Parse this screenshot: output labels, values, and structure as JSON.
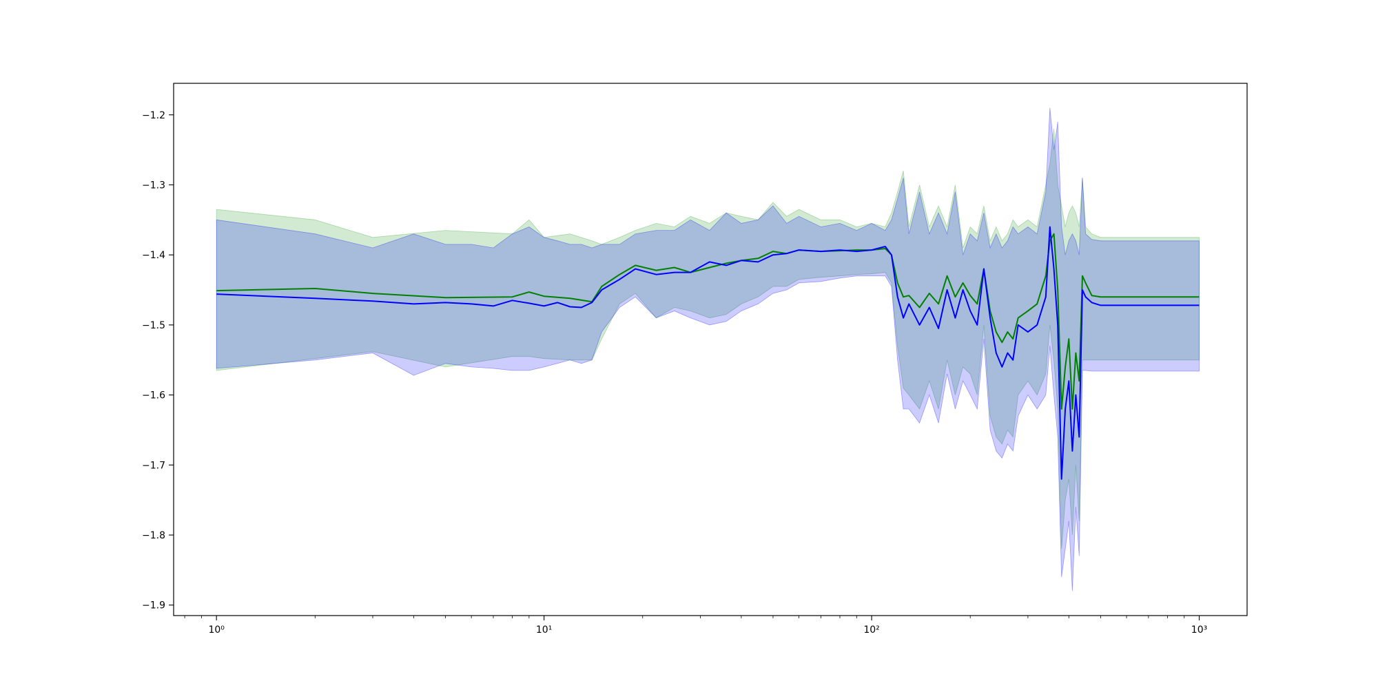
{
  "chart_data": {
    "type": "line",
    "title": "",
    "xlabel": "",
    "ylabel": "",
    "xscale": "log",
    "xlim": [
      0.74,
      1400
    ],
    "ylim": [
      -1.915,
      -1.155
    ],
    "grid": false,
    "legend": "none",
    "x_ticks": [
      {
        "value": 1,
        "label": "10⁰"
      },
      {
        "value": 10,
        "label": "10¹"
      },
      {
        "value": 100,
        "label": "10²"
      },
      {
        "value": 1000,
        "label": "10³"
      }
    ],
    "y_ticks": [
      {
        "value": -1.2,
        "label": "−1.2"
      },
      {
        "value": -1.3,
        "label": "−1.3"
      },
      {
        "value": -1.4,
        "label": "−1.4"
      },
      {
        "value": -1.5,
        "label": "−1.5"
      },
      {
        "value": -1.6,
        "label": "−1.6"
      },
      {
        "value": -1.7,
        "label": "−1.7"
      },
      {
        "value": -1.8,
        "label": "−1.8"
      },
      {
        "value": -1.9,
        "label": "−1.9"
      }
    ],
    "series": [
      {
        "color": "#008000",
        "band_color": "#2ca02c",
        "band_opacity": 0.22,
        "x": [
          1,
          2,
          3,
          5,
          8,
          9,
          10,
          12,
          14,
          15,
          17,
          19,
          22,
          25,
          28,
          32,
          36,
          40,
          45,
          50,
          55,
          60,
          70,
          80,
          90,
          100,
          110,
          115,
          120,
          125,
          130,
          140,
          150,
          160,
          170,
          180,
          190,
          200,
          210,
          220,
          230,
          240,
          250,
          260,
          270,
          280,
          300,
          320,
          340,
          350,
          360,
          370,
          380,
          390,
          400,
          410,
          420,
          430,
          440,
          450,
          470,
          500,
          1000
        ],
        "mean": [
          -1.451,
          -1.448,
          -1.455,
          -1.461,
          -1.46,
          -1.453,
          -1.459,
          -1.462,
          -1.467,
          -1.445,
          -1.428,
          -1.415,
          -1.422,
          -1.418,
          -1.425,
          -1.418,
          -1.412,
          -1.408,
          -1.405,
          -1.395,
          -1.398,
          -1.393,
          -1.395,
          -1.394,
          -1.393,
          -1.393,
          -1.391,
          -1.4,
          -1.44,
          -1.46,
          -1.458,
          -1.475,
          -1.455,
          -1.47,
          -1.43,
          -1.46,
          -1.44,
          -1.458,
          -1.47,
          -1.42,
          -1.48,
          -1.51,
          -1.525,
          -1.51,
          -1.52,
          -1.49,
          -1.48,
          -1.47,
          -1.43,
          -1.38,
          -1.37,
          -1.45,
          -1.62,
          -1.56,
          -1.52,
          -1.62,
          -1.54,
          -1.58,
          -1.43,
          -1.44,
          -1.458,
          -1.46,
          -1.46
        ],
        "upper": [
          -1.335,
          -1.35,
          -1.375,
          -1.365,
          -1.37,
          -1.35,
          -1.375,
          -1.37,
          -1.38,
          -1.385,
          -1.375,
          -1.365,
          -1.355,
          -1.36,
          -1.345,
          -1.355,
          -1.34,
          -1.345,
          -1.35,
          -1.325,
          -1.345,
          -1.335,
          -1.35,
          -1.35,
          -1.36,
          -1.355,
          -1.36,
          -1.34,
          -1.31,
          -1.28,
          -1.36,
          -1.3,
          -1.36,
          -1.33,
          -1.36,
          -1.3,
          -1.39,
          -1.36,
          -1.37,
          -1.33,
          -1.38,
          -1.36,
          -1.38,
          -1.37,
          -1.35,
          -1.36,
          -1.35,
          -1.36,
          -1.3,
          -1.27,
          -1.22,
          -1.3,
          -1.33,
          -1.36,
          -1.34,
          -1.33,
          -1.34,
          -1.36,
          -1.29,
          -1.36,
          -1.37,
          -1.375,
          -1.375
        ],
        "lower": [
          -1.565,
          -1.548,
          -1.538,
          -1.56,
          -1.545,
          -1.545,
          -1.548,
          -1.55,
          -1.55,
          -1.52,
          -1.47,
          -1.455,
          -1.49,
          -1.475,
          -1.48,
          -1.49,
          -1.485,
          -1.47,
          -1.46,
          -1.445,
          -1.445,
          -1.435,
          -1.432,
          -1.43,
          -1.428,
          -1.427,
          -1.425,
          -1.44,
          -1.53,
          -1.59,
          -1.6,
          -1.62,
          -1.58,
          -1.62,
          -1.55,
          -1.6,
          -1.56,
          -1.57,
          -1.6,
          -1.5,
          -1.63,
          -1.66,
          -1.67,
          -1.65,
          -1.66,
          -1.6,
          -1.58,
          -1.6,
          -1.57,
          -1.5,
          -1.55,
          -1.62,
          -1.82,
          -1.75,
          -1.72,
          -1.8,
          -1.7,
          -1.78,
          -1.55,
          -1.55,
          -1.55,
          -1.55,
          -1.55
        ]
      },
      {
        "color": "#0000ff",
        "band_color": "#0000ff",
        "band_opacity": 0.2,
        "x": [
          1,
          2,
          3,
          4,
          5,
          6,
          7,
          8,
          9,
          10,
          11,
          12,
          13,
          14,
          15,
          17,
          19,
          22,
          25,
          28,
          32,
          36,
          40,
          45,
          50,
          55,
          60,
          70,
          80,
          90,
          100,
          110,
          115,
          120,
          125,
          130,
          140,
          150,
          160,
          170,
          180,
          190,
          200,
          210,
          220,
          230,
          240,
          250,
          260,
          270,
          280,
          300,
          320,
          340,
          350,
          360,
          370,
          380,
          390,
          400,
          410,
          420,
          430,
          440,
          450,
          470,
          500,
          1000
        ],
        "mean": [
          -1.456,
          -1.462,
          -1.466,
          -1.47,
          -1.468,
          -1.47,
          -1.473,
          -1.465,
          -1.469,
          -1.473,
          -1.468,
          -1.474,
          -1.475,
          -1.468,
          -1.45,
          -1.435,
          -1.42,
          -1.428,
          -1.425,
          -1.425,
          -1.41,
          -1.415,
          -1.408,
          -1.41,
          -1.4,
          -1.398,
          -1.393,
          -1.395,
          -1.393,
          -1.395,
          -1.393,
          -1.388,
          -1.4,
          -1.46,
          -1.49,
          -1.47,
          -1.5,
          -1.475,
          -1.505,
          -1.45,
          -1.49,
          -1.45,
          -1.48,
          -1.5,
          -1.42,
          -1.49,
          -1.54,
          -1.56,
          -1.54,
          -1.55,
          -1.5,
          -1.51,
          -1.5,
          -1.46,
          -1.36,
          -1.42,
          -1.5,
          -1.72,
          -1.62,
          -1.58,
          -1.68,
          -1.6,
          -1.66,
          -1.45,
          -1.46,
          -1.468,
          -1.472,
          -1.472
        ],
        "upper": [
          -1.35,
          -1.37,
          -1.39,
          -1.37,
          -1.385,
          -1.385,
          -1.39,
          -1.37,
          -1.36,
          -1.375,
          -1.38,
          -1.385,
          -1.385,
          -1.39,
          -1.385,
          -1.385,
          -1.37,
          -1.365,
          -1.365,
          -1.35,
          -1.365,
          -1.34,
          -1.355,
          -1.35,
          -1.33,
          -1.355,
          -1.345,
          -1.36,
          -1.355,
          -1.365,
          -1.355,
          -1.365,
          -1.35,
          -1.32,
          -1.29,
          -1.37,
          -1.31,
          -1.37,
          -1.34,
          -1.37,
          -1.31,
          -1.4,
          -1.37,
          -1.38,
          -1.34,
          -1.39,
          -1.37,
          -1.39,
          -1.38,
          -1.36,
          -1.37,
          -1.36,
          -1.37,
          -1.31,
          -1.19,
          -1.25,
          -1.21,
          -1.36,
          -1.4,
          -1.38,
          -1.37,
          -1.38,
          -1.4,
          -1.29,
          -1.37,
          -1.378,
          -1.38,
          -1.38
        ],
        "lower": [
          -1.562,
          -1.55,
          -1.54,
          -1.572,
          -1.555,
          -1.56,
          -1.562,
          -1.565,
          -1.565,
          -1.56,
          -1.555,
          -1.55,
          -1.555,
          -1.55,
          -1.51,
          -1.475,
          -1.46,
          -1.49,
          -1.48,
          -1.49,
          -1.5,
          -1.495,
          -1.48,
          -1.47,
          -1.455,
          -1.45,
          -1.44,
          -1.438,
          -1.433,
          -1.43,
          -1.43,
          -1.43,
          -1.445,
          -1.55,
          -1.62,
          -1.62,
          -1.64,
          -1.6,
          -1.64,
          -1.57,
          -1.62,
          -1.58,
          -1.6,
          -1.62,
          -1.52,
          -1.65,
          -1.68,
          -1.69,
          -1.67,
          -1.68,
          -1.63,
          -1.6,
          -1.62,
          -1.6,
          -1.53,
          -1.6,
          -1.66,
          -1.86,
          -1.82,
          -1.78,
          -1.88,
          -1.76,
          -1.83,
          -1.565,
          -1.565,
          -1.566,
          -1.566,
          -1.566
        ]
      }
    ]
  }
}
